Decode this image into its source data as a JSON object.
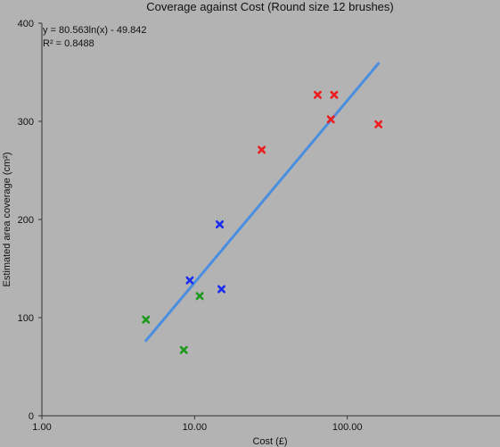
{
  "chart_data": {
    "type": "scatter",
    "title": "Coverage against Cost (Round size 12 brushes)",
    "xlabel": "Cost (£)",
    "ylabel": "Estimated area coverage (cm²)",
    "x_scale": "log",
    "xlim": [
      1,
      1000
    ],
    "ylim": [
      0,
      400
    ],
    "x_tick_labels": [
      "1.00",
      "10.00",
      "100.00"
    ],
    "x_tick_values": [
      1,
      10,
      100
    ],
    "y_ticks": [
      0,
      100,
      200,
      300,
      400
    ],
    "grid": false,
    "legend": "none",
    "series": [
      {
        "color": "#1a9a1a",
        "points": [
          [
            4.8,
            98
          ],
          [
            8.5,
            67
          ],
          [
            10.8,
            122
          ]
        ]
      },
      {
        "color": "#1a2cf0",
        "points": [
          [
            9.3,
            138
          ],
          [
            14.6,
            195
          ],
          [
            15.0,
            129
          ]
        ]
      },
      {
        "color": "#ee1c1c",
        "points": [
          [
            27.5,
            271
          ],
          [
            64,
            327
          ],
          [
            82,
            327
          ],
          [
            78,
            302
          ],
          [
            160,
            297
          ]
        ]
      }
    ],
    "trendline": {
      "type": "logarithmic",
      "a": 80.563,
      "b": -49.842,
      "x_range": [
        4.8,
        160
      ],
      "color": "#4a8ee0",
      "equation_label": "y = 80.563ln(x) - 49.842",
      "r2_label": "R² = 0.8488"
    }
  }
}
